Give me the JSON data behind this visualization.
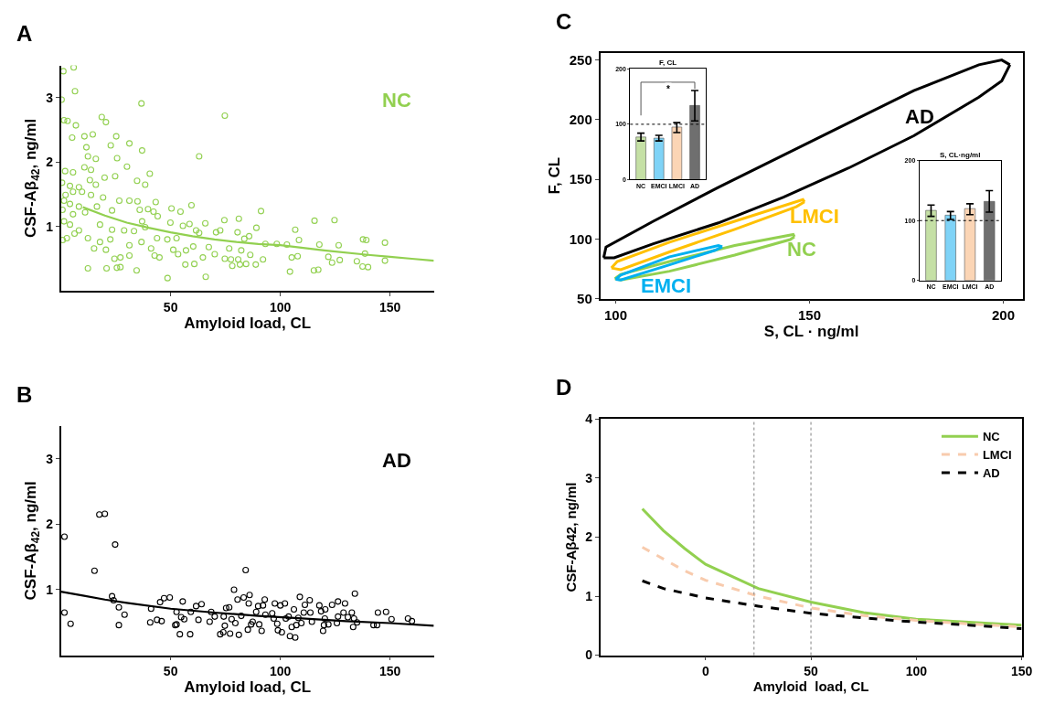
{
  "chart_data": [
    {
      "type": "scatter",
      "title": "A",
      "xlabel": "Amyloid load, CL",
      "ylabel": "CSF-Aβ$_{42}$, ng/ml",
      "xlim": [
        0,
        170
      ],
      "xticks": [
        50,
        100,
        150
      ],
      "ylim": [
        0,
        3.5
      ],
      "yticks": [
        1,
        2,
        3
      ],
      "legend": false,
      "series": [
        {
          "name": "NC",
          "type": "scatter",
          "marker": "circle",
          "color": "#92d050",
          "x": [
            1.1,
            5.8,
            6.4,
            0.3,
            36.7,
            74.7,
            18.6,
            20.5,
            1.4,
            3,
            6.8,
            25.2,
            10.7,
            5.1,
            14.5,
            31.2,
            22.7,
            11.6,
            37,
            63,
            25.6,
            12.3,
            15.9,
            10.7,
            30.1,
            13.7,
            40.5,
            1.9,
            5.5,
            19.9,
            24.7,
            34.7,
            38.4,
            0.5,
            4.1,
            8.2,
            15.9,
            13.2,
            2.1,
            5.5,
            9.6,
            13.7,
            19.2,
            26.6,
            31.2,
            34.9,
            43.2,
            1.4,
            4.1,
            8.2,
            16.4,
            59.5,
            50.4,
            54.5,
            35.9,
            39.7,
            42.2,
            91.2,
            0.7,
            5.5,
            11,
            23.3,
            44.1,
            37,
            49.9,
            55.6,
            58.6,
            65.8,
            74.5,
            81.1,
            115.6,
            124.7,
            1.4,
            4.1,
            8.2,
            17.8,
            23.3,
            28.8,
            33.3,
            38.4,
            0.8,
            2.7,
            6.2,
            12.3,
            17.8,
            22.5,
            31.2,
            36.7,
            41.1,
            43.8,
            48.5,
            52.7,
            61.6,
            63,
            70.7,
            72.6,
            80.5,
            89.1,
            106.8,
            108.5,
            93.2,
            98.4,
            103,
            117.8,
            126.6,
            137.7,
            139.2,
            147.7,
            83.6,
            85.8,
            60.3,
            67.4,
            76.7,
            82.2,
            15.1,
            20.5,
            51.2,
            53.4,
            57,
            70.1,
            86.3,
            92.1,
            105.2,
            107.9,
            121.9,
            127.1,
            134.9,
            138.6,
            147.7,
            123.6,
            24.4,
            27.1,
            31.2,
            42.7,
            44.9,
            64.7,
            74.7,
            77.5,
            80.8,
            56.7,
            60.8,
            78.1,
            81.6,
            84.4,
            88.8,
            12.3,
            20.8,
            25.5,
            27.1,
            34.5,
            115.3,
            117.3,
            137.5,
            140,
            104.4,
            48.6,
            66
          ],
          "values": [
            3.41,
            3.47,
            3.1,
            2.97,
            2.91,
            2.72,
            2.7,
            2.62,
            2.65,
            2.64,
            2.57,
            2.4,
            2.4,
            2.38,
            2.43,
            2.29,
            2.26,
            2.23,
            2.18,
            2.09,
            2.06,
            2.09,
            2.05,
            1.92,
            1.93,
            1.88,
            1.82,
            1.86,
            1.84,
            1.76,
            1.78,
            1.71,
            1.65,
            1.68,
            1.63,
            1.61,
            1.65,
            1.72,
            1.49,
            1.54,
            1.54,
            1.49,
            1.45,
            1.4,
            1.4,
            1.39,
            1.38,
            1.4,
            1.35,
            1.31,
            1.31,
            1.33,
            1.28,
            1.23,
            1.26,
            1.27,
            1.23,
            1.24,
            1.26,
            1.19,
            1.22,
            1.25,
            1.16,
            1.08,
            1.06,
            1.01,
            1.04,
            1.05,
            1.1,
            1.12,
            1.09,
            1.1,
            1.08,
            1.03,
            0.94,
            1.03,
            0.95,
            0.94,
            0.93,
            0.99,
            0.79,
            0.82,
            0.89,
            0.82,
            0.76,
            0.8,
            0.71,
            0.76,
            0.66,
            0.82,
            0.8,
            0.82,
            0.94,
            0.9,
            0.91,
            0.94,
            0.91,
            0.98,
            0.95,
            0.79,
            0.73,
            0.73,
            0.72,
            0.72,
            0.71,
            0.8,
            0.79,
            0.75,
            0.81,
            0.85,
            0.69,
            0.68,
            0.66,
            0.63,
            0.66,
            0.64,
            0.64,
            0.57,
            0.63,
            0.57,
            0.56,
            0.49,
            0.52,
            0.54,
            0.53,
            0.48,
            0.46,
            0.58,
            0.47,
            0.44,
            0.5,
            0.52,
            0.55,
            0.55,
            0.52,
            0.52,
            0.5,
            0.49,
            0.49,
            0.41,
            0.42,
            0.39,
            0.41,
            0.42,
            0.41,
            0.35,
            0.35,
            0.36,
            0.37,
            0.32,
            0.32,
            0.33,
            0.38,
            0.37,
            0.3,
            0.2,
            0.22
          ]
        },
        {
          "type": "line",
          "marker": "none",
          "color": "#92d050",
          "x": [
            10,
            20,
            30,
            40,
            50,
            60,
            70,
            80,
            90,
            100,
            120,
            140,
            150,
            160,
            170
          ],
          "values": [
            1.3,
            1.17,
            1.06,
            0.98,
            0.91,
            0.85,
            0.8,
            0.76,
            0.73,
            0.71,
            0.63,
            0.56,
            0.53,
            0.5,
            0.47
          ]
        }
      ]
    },
    {
      "type": "line",
      "title": "C",
      "xlabel": "S, CL · ng/ml",
      "ylabel": "F, CL",
      "xlim": [
        96,
        205
      ],
      "xticks": [
        100,
        150,
        200
      ],
      "ylim": [
        50,
        256
      ],
      "yticks": [
        50,
        100,
        150,
        200,
        250
      ],
      "legend": false,
      "series": [
        {
          "color": "#000000",
          "x": [
            96.9,
            97.5,
            109.7,
            126.5,
            143.3,
            160.1,
            176.9,
            193.7,
            199.6,
            201.7
          ],
          "values": [
            84.3,
            93.2,
            114.9,
            143.3,
            170.3,
            197.3,
            224.3,
            246.0,
            250.0,
            246.0
          ]
        },
        {
          "color": "#000000",
          "x": [
            96.9,
            99.6,
            109.7,
            126.5,
            143.3,
            160.1,
            176.9,
            193.7,
            199.6,
            201.7
          ],
          "values": [
            84.3,
            84.3,
            96.0,
            113.5,
            135.1,
            159.5,
            186.5,
            218.9,
            232.5,
            246.0
          ]
        },
        {
          "color": "#ffc000",
          "x": [
            98.9,
            100.4,
            113.9,
            130.7,
            148.3,
            148.7
          ],
          "values": [
            75.7,
            81.1,
            97.3,
            114.9,
            133.0,
            131.1
          ]
        },
        {
          "color": "#ffc000",
          "x": [
            98.9,
            101.3,
            113.9,
            130.7,
            146.6,
            148.7
          ],
          "values": [
            75.7,
            74.3,
            89.2,
            108.1,
            127.0,
            131.1
          ]
        },
        {
          "color": "#92d050",
          "x": [
            99.8,
            101.3,
            113.9,
            130.7,
            145.8,
            146.1
          ],
          "values": [
            66.8,
            70.3,
            81.1,
            94.6,
            103.8,
            101.9
          ]
        },
        {
          "color": "#92d050",
          "x": [
            99.8,
            101.3,
            113.9,
            130.7,
            145.0,
            146.1
          ],
          "values": [
            66.8,
            65.7,
            73.0,
            86.5,
            99.5,
            101.9
          ]
        },
        {
          "color": "#00b0f0",
          "x": [
            100.0,
            101.3,
            113.9,
            126.5,
            127.5
          ],
          "values": [
            66.2,
            69.7,
            85.1,
            94.6,
            93.5
          ]
        },
        {
          "color": "#00b0f0",
          "x": [
            100.0,
            101.3,
            113.9,
            125.6,
            127.5
          ],
          "values": [
            66.2,
            65.7,
            78.4,
            90.5,
            93.5
          ]
        }
      ],
      "annotations": [
        "AD",
        "LMCI",
        "NC",
        "EMCI"
      ]
    },
    {
      "type": "bar",
      "title": "F, CL",
      "categories": [
        "NC",
        "EMCI",
        "LMCI",
        "AD"
      ],
      "values": [
        77,
        75,
        95,
        134
      ],
      "colors": [
        "#c5e0a5",
        "#7fd3f7",
        "#fbd5b5",
        "#6f6f6f"
      ],
      "errors": [
        [
          70,
          84
        ],
        [
          70,
          80
        ],
        [
          85,
          103
        ],
        [
          106,
          161
        ]
      ],
      "ylim": [
        0,
        200
      ],
      "yticks": [
        0,
        100,
        200
      ],
      "legend": false,
      "ref_lines": [
        {
          "axis": "y",
          "value": 100,
          "line_style": "dotted",
          "color": "#000000"
        }
      ],
      "annotations": [
        "*"
      ]
    },
    {
      "type": "bar",
      "title": "S, CL·ng/ml",
      "categories": [
        "NC",
        "EMCI",
        "LMCI",
        "AD"
      ],
      "values": [
        117,
        109,
        120,
        132
      ],
      "colors": [
        "#c5e0a5",
        "#7fd3f7",
        "#fbd5b5",
        "#6f6f6f"
      ],
      "errors": [
        [
          107,
          126
        ],
        [
          102,
          115
        ],
        [
          110,
          128
        ],
        [
          114,
          150
        ]
      ],
      "ylim": [
        0,
        200
      ],
      "yticks": [
        0,
        100,
        200
      ],
      "legend": false,
      "ref_lines": [
        {
          "axis": "y",
          "value": 100,
          "line_style": "dotted",
          "color": "#000000"
        }
      ]
    },
    {
      "type": "scatter",
      "title": "B",
      "xlabel": "Amyloid load, CL",
      "ylabel": "CSF-Aβ$_{42}$, ng/ml",
      "xlim": [
        0,
        170
      ],
      "xticks": [
        50,
        100,
        150
      ],
      "ylim": [
        0,
        3.5
      ],
      "yticks": [
        1,
        2,
        3
      ],
      "legend": false,
      "series": [
        {
          "name": "AD",
          "type": "scatter",
          "marker": "circle",
          "color": "#000000",
          "x": [
            1.6,
            1.6,
            4.4,
            17.5,
            20,
            15.3,
            24.7,
            23.3,
            24,
            26.4,
            26.4,
            29,
            41.1,
            40.7,
            43.8,
            45.9,
            45.2,
            47,
            49.6,
            52.1,
            52.7,
            52.7,
            54.2,
            54.8,
            55.5,
            56.2,
            58.9,
            59.2,
            61.6,
            62.7,
            64.1,
            67.8,
            68.5,
            70.1,
            72.6,
            74,
            74.2,
            74.7,
            75.3,
            76.7,
            77.1,
            77.8,
            78.9,
            79.5,
            80.5,
            81.1,
            82.2,
            83.3,
            84.2,
            85.2,
            86,
            85.6,
            86.7,
            87.4,
            89,
            89.9,
            90.4,
            91.5,
            92.1,
            92.9,
            93.2,
            96.3,
            97,
            97.5,
            98.6,
            98.9,
            100,
            100.7,
            102.1,
            102.5,
            103.8,
            104.4,
            105.2,
            106.2,
            106.8,
            107.3,
            108.2,
            108.9,
            109.6,
            110.7,
            111.2,
            113.4,
            113.7,
            114.4,
            117.8,
            118.6,
            119.5,
            119.9,
            120.5,
            120.3,
            121.9,
            123.6,
            125.8,
            126.3,
            126.3,
            128.8,
            129.5,
            130.8,
            132.6,
            133.2,
            133.6,
            134,
            135,
            142.5,
            144.5,
            144.1,
            148.2,
            150.7,
            158.2,
            160
          ],
          "values": [
            1.81,
            0.65,
            0.48,
            2.15,
            2.16,
            1.29,
            1.69,
            0.9,
            0.84,
            0.73,
            0.46,
            0.62,
            0.71,
            0.5,
            0.54,
            0.52,
            0.81,
            0.87,
            0.88,
            0.46,
            0.47,
            0.66,
            0.32,
            0.58,
            0.82,
            0.55,
            0.32,
            0.66,
            0.75,
            0.54,
            0.78,
            0.51,
            0.66,
            0.59,
            0.32,
            0.35,
            0.59,
            0.45,
            0.72,
            0.73,
            0.33,
            0.55,
            1.0,
            0.49,
            0.85,
            0.31,
            0.6,
            0.88,
            1.3,
            0.39,
            0.92,
            0.79,
            0.47,
            0.51,
            0.66,
            0.75,
            0.47,
            0.37,
            0.76,
            0.85,
            0.62,
            0.64,
            0.56,
            0.79,
            0.48,
            0.38,
            0.76,
            0.35,
            0.79,
            0.56,
            0.59,
            0.29,
            0.43,
            0.7,
            0.27,
            0.46,
            0.57,
            0.89,
            0.49,
            0.65,
            0.77,
            0.84,
            0.65,
            0.51,
            0.76,
            0.67,
            0.37,
            0.46,
            0.7,
            0.56,
            0.47,
            0.77,
            0.49,
            0.82,
            0.59,
            0.65,
            0.79,
            0.58,
            0.65,
            0.43,
            0.56,
            0.94,
            0.5,
            0.46,
            0.65,
            0.46,
            0.66,
            0.55,
            0.56,
            0.52
          ]
        },
        {
          "type": "line",
          "marker": "none",
          "color": "#000000",
          "x": [
            0,
            10,
            20,
            30,
            50,
            70,
            90,
            110,
            130,
            150,
            170
          ],
          "values": [
            0.97,
            0.91,
            0.85,
            0.8,
            0.71,
            0.65,
            0.6,
            0.56,
            0.52,
            0.49,
            0.45
          ]
        }
      ]
    },
    {
      "type": "line",
      "title": "D",
      "xlabel": "Amyloid  load, CL",
      "ylabel": "CSF-Aβ42, ng/ml",
      "xlim": [
        -50,
        150
      ],
      "xticks": [
        0,
        50,
        100,
        150
      ],
      "ylim": [
        0,
        4
      ],
      "yticks": [
        0,
        1,
        2,
        3,
        4
      ],
      "legend": "top right",
      "ref_lines": [
        {
          "axis": "x",
          "value": 23,
          "line_style": "dotted",
          "color": "#808080"
        },
        {
          "axis": "x",
          "value": 50,
          "line_style": "dotted",
          "color": "#808080"
        }
      ],
      "series": [
        {
          "name": "NC",
          "color": "#92d050",
          "line_style": "solid",
          "x": [
            -30,
            -20,
            -10,
            0,
            25,
            50,
            75,
            100,
            125,
            150
          ],
          "values": [
            2.48,
            2.11,
            1.81,
            1.54,
            1.13,
            0.9,
            0.72,
            0.61,
            0.56,
            0.51
          ]
        },
        {
          "name": "LMCI",
          "color": "#f8cbad",
          "line_style": "dashed",
          "x": [
            -30,
            -20,
            -10,
            0,
            25,
            50,
            75,
            100,
            125,
            150
          ],
          "values": [
            1.83,
            1.63,
            1.43,
            1.27,
            1.0,
            0.8,
            0.67,
            0.59,
            0.53,
            0.48
          ]
        },
        {
          "name": "AD",
          "color": "#000000",
          "line_style": "dashed",
          "x": [
            -30,
            -20,
            -10,
            0,
            25,
            50,
            75,
            100,
            125,
            150
          ],
          "values": [
            1.26,
            1.13,
            1.05,
            0.97,
            0.83,
            0.71,
            0.63,
            0.56,
            0.51,
            0.45
          ]
        }
      ]
    }
  ]
}
